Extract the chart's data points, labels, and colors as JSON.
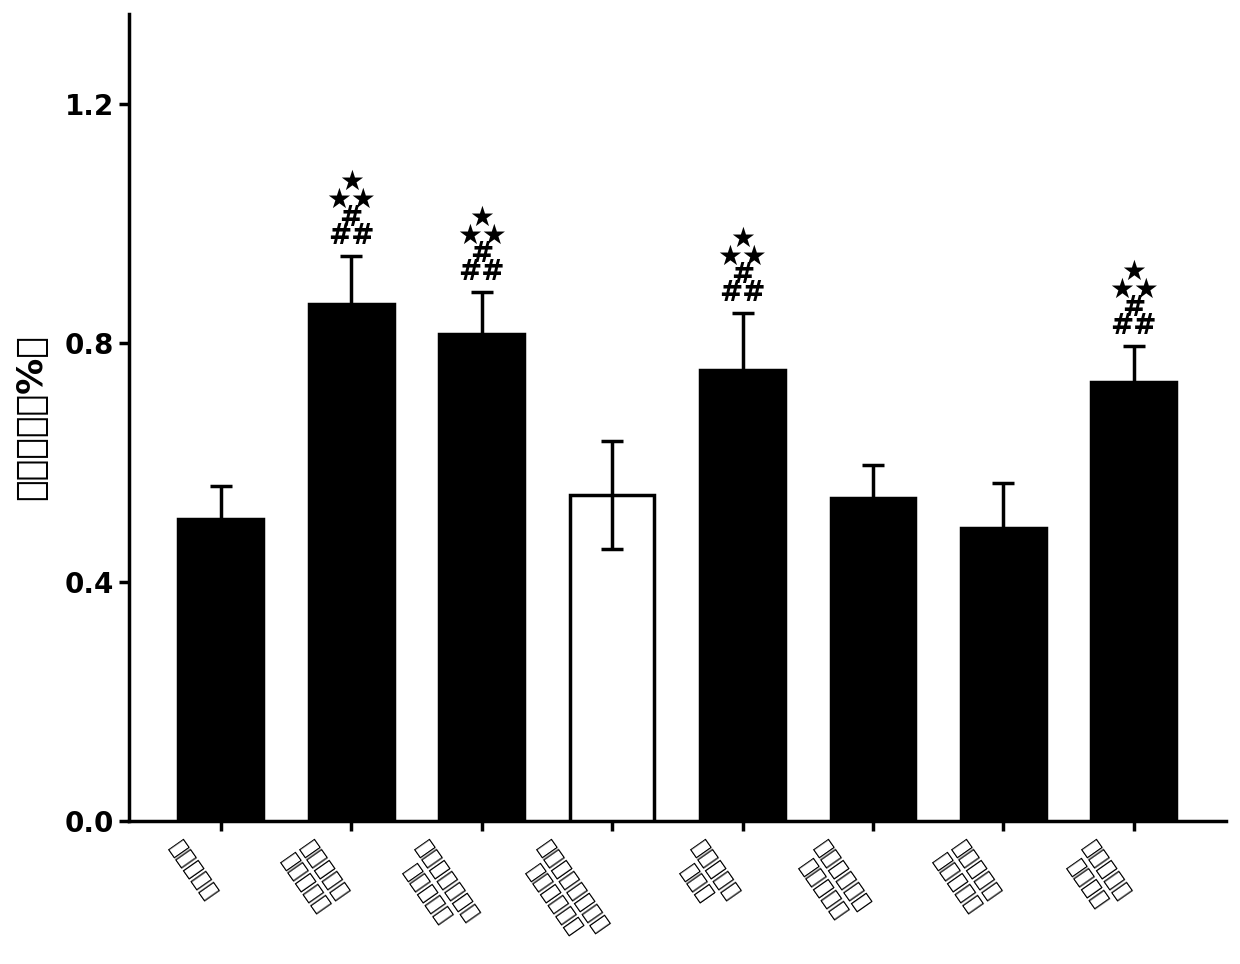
{
  "categories": [
    "正常对照组",
    "二硝基氯苯\n阳性造模组",
    "他克莫司碳酸丙\n烯酯溶液组",
    "组合物基质组（不\n含他克莫司）",
    "他克莫司无\n油相组",
    "组合物（含他\n克莫司）组",
    "凝胶组（含\n他克莫司）",
    "市售他克莫\n司软膏组"
  ],
  "values": [
    0.505,
    0.865,
    0.815,
    0.545,
    0.755,
    0.54,
    0.49,
    0.735
  ],
  "errors": [
    0.055,
    0.08,
    0.07,
    0.09,
    0.095,
    0.055,
    0.075,
    0.06
  ],
  "bar_colors": [
    "#000000",
    "#000000",
    "#000000",
    "#ffffff",
    "#000000",
    "#000000",
    "#000000",
    "#000000"
  ],
  "bar_edgecolors": [
    "#000000",
    "#000000",
    "#000000",
    "#000000",
    "#000000",
    "#000000",
    "#000000",
    "#000000"
  ],
  "ylabel": "脾脏指数（%）",
  "ylim": [
    0.0,
    1.35
  ],
  "yticks": [
    0.0,
    0.4,
    0.8,
    1.2
  ],
  "yticklabels": [
    "0.0",
    "0.4",
    "0.8",
    "1.2"
  ],
  "annot_bars": [
    1,
    2,
    4,
    7
  ],
  "annot_star_top": [
    "★",
    "★",
    "★",
    "★"
  ],
  "annot_star_bottom": [
    "★★",
    "★★",
    "★★",
    "★★"
  ],
  "annot_hash_top": [
    "#",
    "#",
    "#",
    "#"
  ],
  "annot_hash_bottom": [
    "##",
    "##",
    "##",
    "##"
  ],
  "background_color": "#ffffff",
  "tick_fontsize": 20,
  "ylabel_fontsize": 26,
  "annotation_fontsize": 20,
  "bar_width": 0.65,
  "linewidth": 2.5,
  "xtick_rotation": -55
}
